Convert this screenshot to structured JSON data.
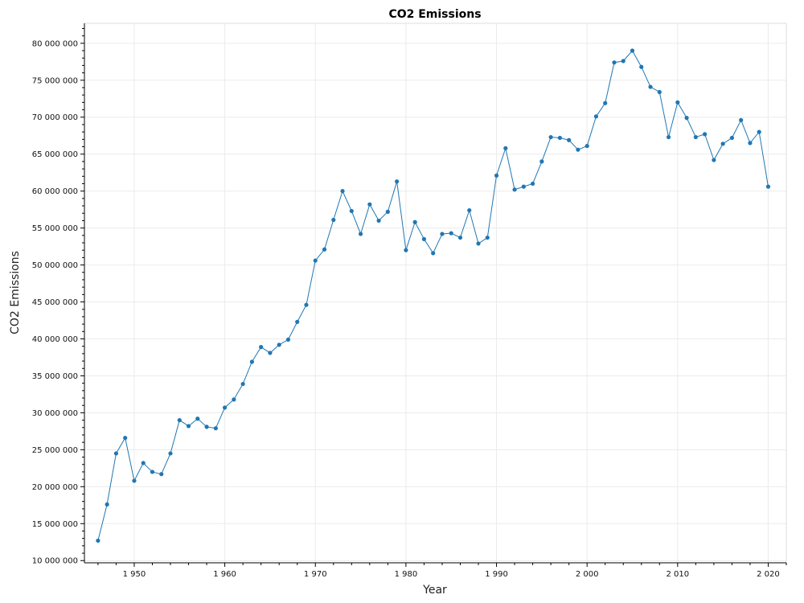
{
  "chart_data": {
    "type": "line",
    "title": "CO2 Emissions",
    "xlabel": "Year",
    "ylabel": "CO2 Emissions",
    "xlim": [
      1944.5,
      2022
    ],
    "ylim": [
      9700000,
      82700000
    ],
    "x_ticks": [
      1950,
      1960,
      1970,
      1980,
      1990,
      2000,
      2010,
      2020
    ],
    "x_tick_labels": [
      "1 950",
      "1 960",
      "1 970",
      "1 980",
      "1 990",
      "2 000",
      "2 010",
      "2 020"
    ],
    "y_ticks": [
      10000000,
      15000000,
      20000000,
      25000000,
      30000000,
      35000000,
      40000000,
      45000000,
      50000000,
      55000000,
      60000000,
      65000000,
      70000000,
      75000000,
      80000000
    ],
    "y_tick_labels": [
      "10 000 000",
      "15 000 000",
      "20 000 000",
      "25 000 000",
      "30 000 000",
      "35 000 000",
      "40 000 000",
      "45 000 000",
      "50 000 000",
      "55 000 000",
      "60 000 000",
      "65 000 000",
      "70 000 000",
      "75 000 000",
      "80 000 000"
    ],
    "grid": true,
    "series": [
      {
        "color": "#1f77b4",
        "x": [
          1946,
          1947,
          1948,
          1949,
          1950,
          1951,
          1952,
          1953,
          1954,
          1955,
          1956,
          1957,
          1958,
          1959,
          1960,
          1961,
          1962,
          1963,
          1964,
          1965,
          1966,
          1967,
          1968,
          1969,
          1970,
          1971,
          1972,
          1973,
          1974,
          1975,
          1976,
          1977,
          1978,
          1979,
          1980,
          1981,
          1982,
          1983,
          1984,
          1985,
          1986,
          1987,
          1988,
          1989,
          1990,
          1991,
          1992,
          1993,
          1994,
          1995,
          1996,
          1997,
          1998,
          1999,
          2000,
          2001,
          2002,
          2003,
          2004,
          2005,
          2006,
          2007,
          2008,
          2009,
          2010,
          2011,
          2012,
          2013,
          2014,
          2015,
          2016,
          2017,
          2018,
          2019,
          2020
        ],
        "y": [
          12700000,
          17600000,
          24500000,
          26600000,
          20800000,
          23200000,
          22000000,
          21700000,
          24500000,
          29000000,
          28200000,
          29200000,
          28100000,
          27900000,
          30700000,
          31800000,
          33900000,
          36900000,
          38900000,
          38100000,
          39200000,
          39900000,
          42300000,
          44600000,
          50600000,
          52100000,
          56100000,
          60000000,
          57300000,
          54200000,
          58200000,
          56000000,
          57200000,
          61300000,
          52000000,
          55800000,
          53500000,
          51600000,
          54200000,
          54300000,
          53700000,
          57400000,
          52900000,
          53700000,
          62100000,
          65800000,
          60200000,
          60600000,
          61000000,
          64000000,
          67300000,
          67200000,
          66900000,
          65600000,
          66100000,
          70100000,
          71900000,
          77400000,
          77600000,
          79000000,
          76800000,
          74100000,
          73400000,
          67300000,
          72000000,
          69900000,
          67300000,
          67700000,
          64200000,
          66400000,
          67200000,
          69600000,
          66500000,
          68000000,
          60600000
        ]
      }
    ]
  }
}
